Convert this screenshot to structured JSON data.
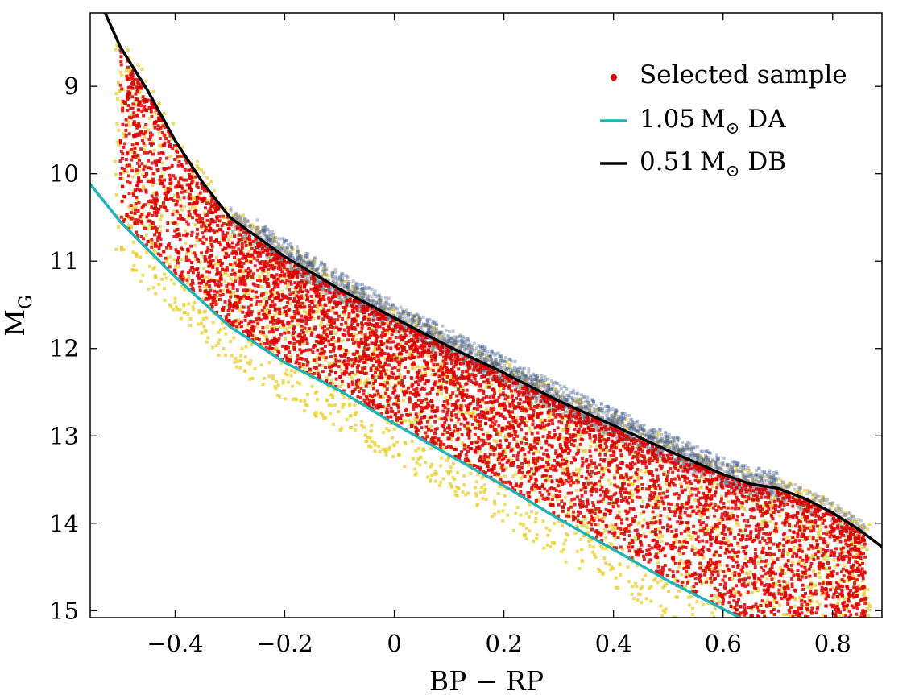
{
  "chart_data": {
    "type": "scatter",
    "title": "",
    "xlabel": "BP − RP",
    "ylabel_main": "M",
    "ylabel_sub": "G",
    "xlim": [
      -0.555,
      0.89
    ],
    "ylim": [
      15.08,
      8.16
    ],
    "y_inverted": true,
    "grid": false,
    "legend_position": "top-right",
    "x_ticks": [
      -0.4,
      -0.2,
      0,
      0.2,
      0.4,
      0.6,
      0.8
    ],
    "x_tick_labels": [
      "−0.4",
      "−0.2",
      "0",
      "0.2",
      "0.4",
      "0.6",
      "0.8"
    ],
    "y_ticks": [
      9,
      10,
      11,
      12,
      13,
      14,
      15
    ],
    "y_tick_labels": [
      "9",
      "10",
      "11",
      "12",
      "13",
      "14",
      "15"
    ],
    "legend": [
      {
        "key": "sample",
        "label": "Selected sample",
        "marker": "point",
        "color": "#dd0000"
      },
      {
        "key": "da",
        "label_prefix": "1.05",
        "label_unit": "M",
        "label_sun": "⊙",
        "label_suffix": "DA",
        "marker": "line",
        "color": "#1fb3b8"
      },
      {
        "key": "db",
        "label_prefix": "0.51",
        "label_unit": "M",
        "label_sun": "⊙",
        "label_suffix": "DB",
        "marker": "line",
        "color": "#000000"
      }
    ],
    "series": [
      {
        "key": "da",
        "kind": "line",
        "color": "#1fb3b8",
        "x": [
          -0.56,
          -0.5,
          -0.4,
          -0.3,
          -0.2,
          -0.1,
          0,
          0.1,
          0.2,
          0.3,
          0.4,
          0.5,
          0.6,
          0.63
        ],
        "y": [
          10.08,
          10.55,
          11.18,
          11.75,
          12.16,
          12.48,
          12.86,
          13.22,
          13.57,
          13.95,
          14.3,
          14.66,
          14.98,
          15.08
        ]
      },
      {
        "key": "db",
        "kind": "line",
        "color": "#000000",
        "x": [
          -0.53,
          -0.5,
          -0.45,
          -0.4,
          -0.35,
          -0.3,
          -0.2,
          -0.1,
          0,
          0.1,
          0.2,
          0.3,
          0.4,
          0.5,
          0.6,
          0.65,
          0.7,
          0.75,
          0.8,
          0.85,
          0.89
        ],
        "y": [
          8.13,
          8.55,
          9.05,
          9.62,
          10.1,
          10.5,
          10.95,
          11.32,
          11.65,
          11.98,
          12.28,
          12.6,
          12.88,
          13.17,
          13.44,
          13.55,
          13.6,
          13.72,
          13.88,
          14.08,
          14.27
        ]
      }
    ],
    "scatter_clouds": [
      {
        "key": "all-faint",
        "color": "#e8cf2a",
        "opacity": 0.75,
        "x_range": [
          -0.51,
          0.87
        ],
        "upper_of": "db",
        "upper_offset": -0.15,
        "lower_of": "da",
        "lower_offset": 0.45
      },
      {
        "key": "all-dense",
        "color": "#8d8f86",
        "opacity": 0.45,
        "x_range": [
          -0.3,
          0.86
        ],
        "upper_of": "db",
        "upper_offset": -0.12,
        "lower_of": "db",
        "lower_offset": 0.15
      },
      {
        "key": "all-blue",
        "color": "#3f5a8c",
        "opacity": 0.35,
        "x_range": [
          -0.25,
          0.7
        ],
        "upper_of": "db",
        "upper_offset": -0.2,
        "lower_of": "db",
        "lower_offset": 0.1
      },
      {
        "key": "sample",
        "color": "#dd0000",
        "opacity": 0.85,
        "x_range": [
          -0.5,
          0.86
        ],
        "upper_of": "db",
        "upper_offset": 0.02,
        "lower_of": "da",
        "lower_offset": 0.0
      }
    ]
  }
}
